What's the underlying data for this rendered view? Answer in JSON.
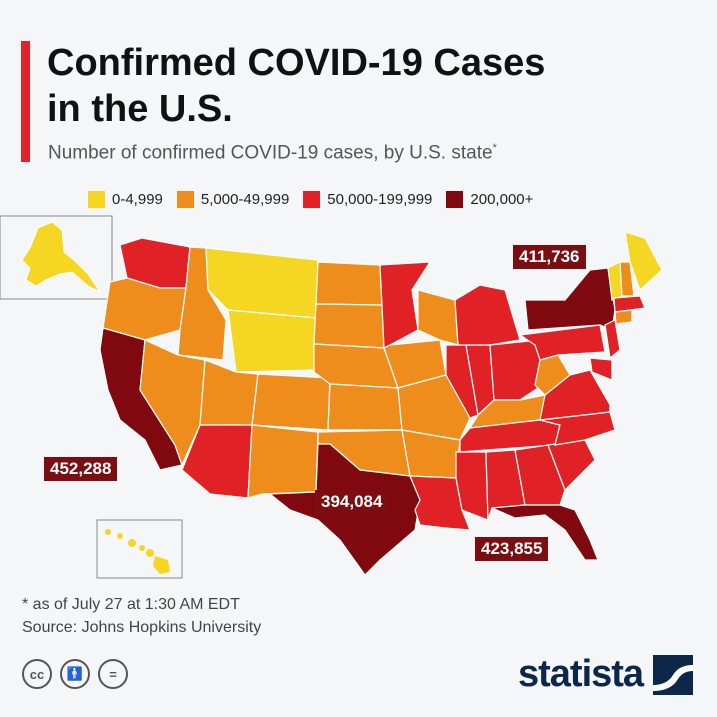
{
  "title_line1": "Confirmed COVID-19 Cases",
  "title_line2": "in the U.S.",
  "subtitle": "Number of confirmed COVID-19 cases, by U.S. state",
  "subtitle_mark": "*",
  "legend": [
    {
      "label": "0-4,999",
      "color": "#f5d623"
    },
    {
      "label": "5,000-49,999",
      "color": "#ef8d1c"
    },
    {
      "label": "50,000-199,999",
      "color": "#e02227"
    },
    {
      "label": "200,000+",
      "color": "#80090f"
    }
  ],
  "callouts": {
    "new_york": "411,736",
    "california": "452,288",
    "texas": "394,084",
    "florida": "423,855"
  },
  "footnote": "* as of July 27 at 1:30 AM EDT",
  "source": "Source: Johns Hopkins University",
  "license_icons": [
    "cc-icon",
    "by-icon",
    "nd-icon"
  ],
  "brand": "statista"
}
